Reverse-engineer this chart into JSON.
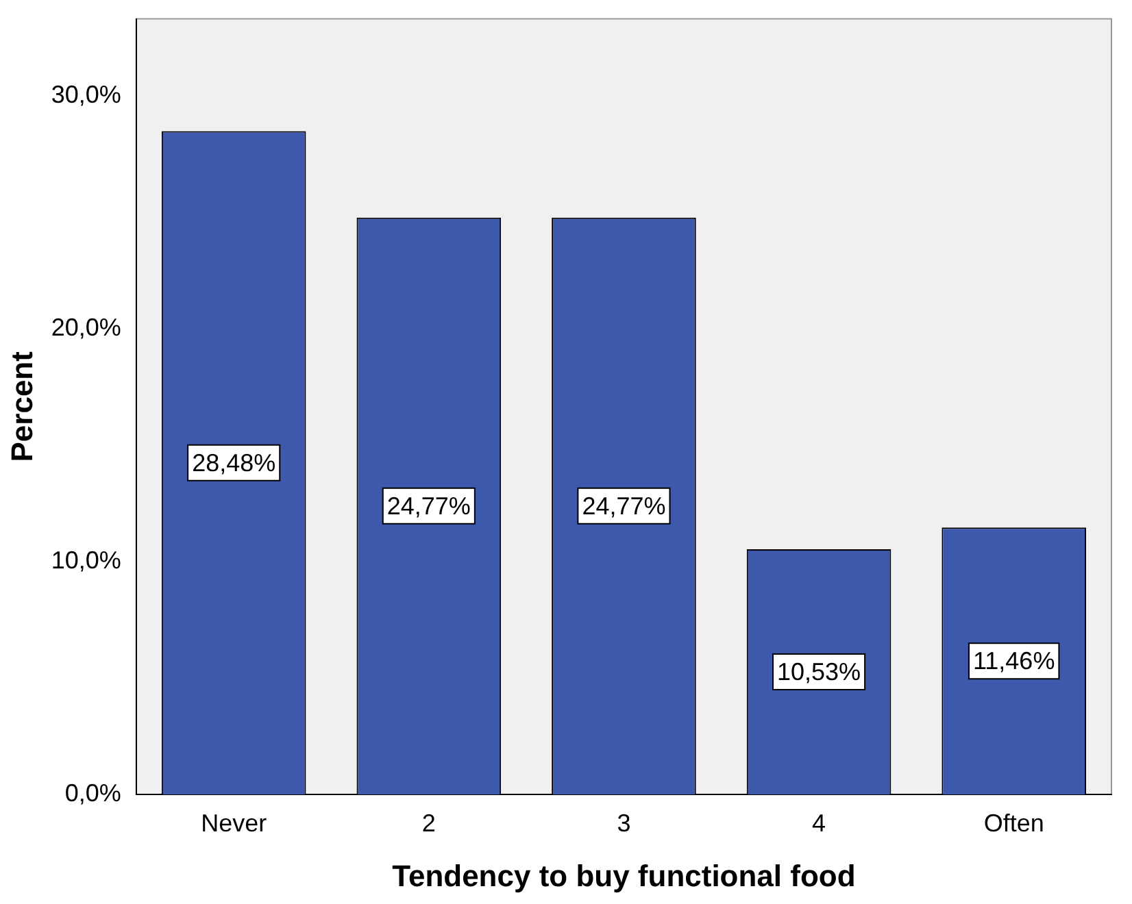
{
  "chart_data": {
    "type": "bar",
    "xlabel": "Tendency to buy functional food",
    "ylabel": "Percent",
    "categories": [
      "Never",
      "2",
      "3",
      "4",
      "Often"
    ],
    "values": [
      28.48,
      24.77,
      24.77,
      10.53,
      11.46
    ],
    "value_labels": [
      "28,48%",
      "24,77%",
      "24,77%",
      "10,53%",
      "11,46%"
    ],
    "color": "#3e58ac",
    "ylim": [
      0,
      33.3
    ],
    "yticks": [
      {
        "value": 0,
        "label": "0,0%"
      },
      {
        "value": 10,
        "label": "10,0%"
      },
      {
        "value": 20,
        "label": "20,0%"
      },
      {
        "value": 30,
        "label": "30,0%"
      }
    ],
    "grid": false,
    "legend": false
  }
}
